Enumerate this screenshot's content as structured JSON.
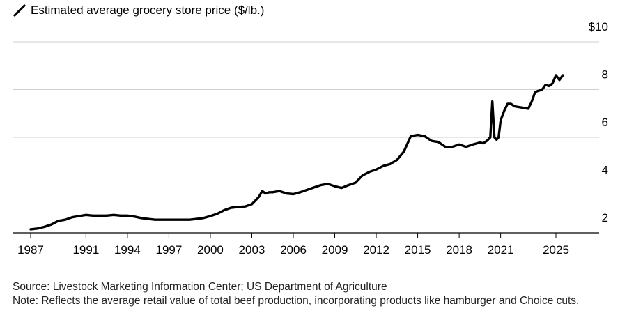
{
  "chart_data": {
    "type": "line",
    "title": "",
    "series": [
      {
        "name": "Estimated average grocery store price ($/lb.)",
        "color": "#000000",
        "x": [
          1987,
          1987.5,
          1988,
          1988.5,
          1989,
          1989.5,
          1990,
          1990.5,
          1991,
          1991.5,
          1992,
          1992.5,
          1993,
          1993.5,
          1994,
          1994.5,
          1995,
          1995.5,
          1996,
          1996.5,
          1997,
          1997.5,
          1998,
          1998.5,
          1999,
          1999.5,
          2000,
          2000.5,
          2001,
          2001.5,
          2002,
          2002.5,
          2003,
          2003.25,
          2003.5,
          2003.75,
          2004,
          2004.25,
          2004.5,
          2005,
          2005.5,
          2006,
          2006.5,
          2007,
          2007.5,
          2008,
          2008.5,
          2009,
          2009.5,
          2010,
          2010.5,
          2011,
          2011.5,
          2012,
          2012.5,
          2013,
          2013.5,
          2014,
          2014.5,
          2015,
          2015.5,
          2016,
          2016.5,
          2017,
          2017.5,
          2018,
          2018.5,
          2019,
          2019.5,
          2019.75,
          2020,
          2020.25,
          2020.4,
          2020.55,
          2020.7,
          2020.85,
          2021,
          2021.25,
          2021.5,
          2021.75,
          2022,
          2022.5,
          2023,
          2023.25,
          2023.5,
          2023.75,
          2024,
          2024.25,
          2024.5,
          2024.75,
          2025,
          2025.25,
          2025.5
        ],
        "y": [
          2.15,
          2.18,
          2.25,
          2.35,
          2.5,
          2.55,
          2.65,
          2.7,
          2.75,
          2.72,
          2.72,
          2.72,
          2.75,
          2.72,
          2.72,
          2.68,
          2.62,
          2.58,
          2.55,
          2.55,
          2.55,
          2.55,
          2.55,
          2.55,
          2.58,
          2.62,
          2.7,
          2.8,
          2.95,
          3.05,
          3.08,
          3.1,
          3.2,
          3.35,
          3.5,
          3.75,
          3.65,
          3.7,
          3.7,
          3.75,
          3.65,
          3.62,
          3.7,
          3.8,
          3.9,
          4.0,
          4.05,
          3.95,
          3.88,
          4.0,
          4.1,
          4.4,
          4.55,
          4.65,
          4.8,
          4.88,
          5.05,
          5.4,
          6.05,
          6.1,
          6.05,
          5.85,
          5.8,
          5.6,
          5.6,
          5.7,
          5.6,
          5.7,
          5.78,
          5.75,
          5.85,
          6.0,
          7.5,
          6.0,
          5.9,
          6.0,
          6.7,
          7.1,
          7.4,
          7.4,
          7.3,
          7.25,
          7.2,
          7.5,
          7.9,
          7.95,
          8.0,
          8.2,
          8.15,
          8.25,
          8.6,
          8.4,
          8.6
        ]
      }
    ],
    "xlim": [
      1987,
      2029
    ],
    "ylim": [
      2,
      10
    ],
    "x_ticks": [
      "1987",
      "1991",
      "1994",
      "1997",
      "2000",
      "2003",
      "2006",
      "2009",
      "2012",
      "2015",
      "2018",
      "2021",
      "2025"
    ],
    "y_ticks": [
      2,
      4,
      6,
      8,
      10
    ],
    "y_tick_labels": [
      "2",
      "4",
      "6",
      "8",
      "$10"
    ],
    "grid": "horizontal",
    "legend": "top-left"
  },
  "footer": {
    "source": "Source: Livestock Marketing Information Center; US Department of Agriculture",
    "note": "Note: Reflects the average retail value of total beef production, incorporating products like hamburger and Choice cuts."
  }
}
